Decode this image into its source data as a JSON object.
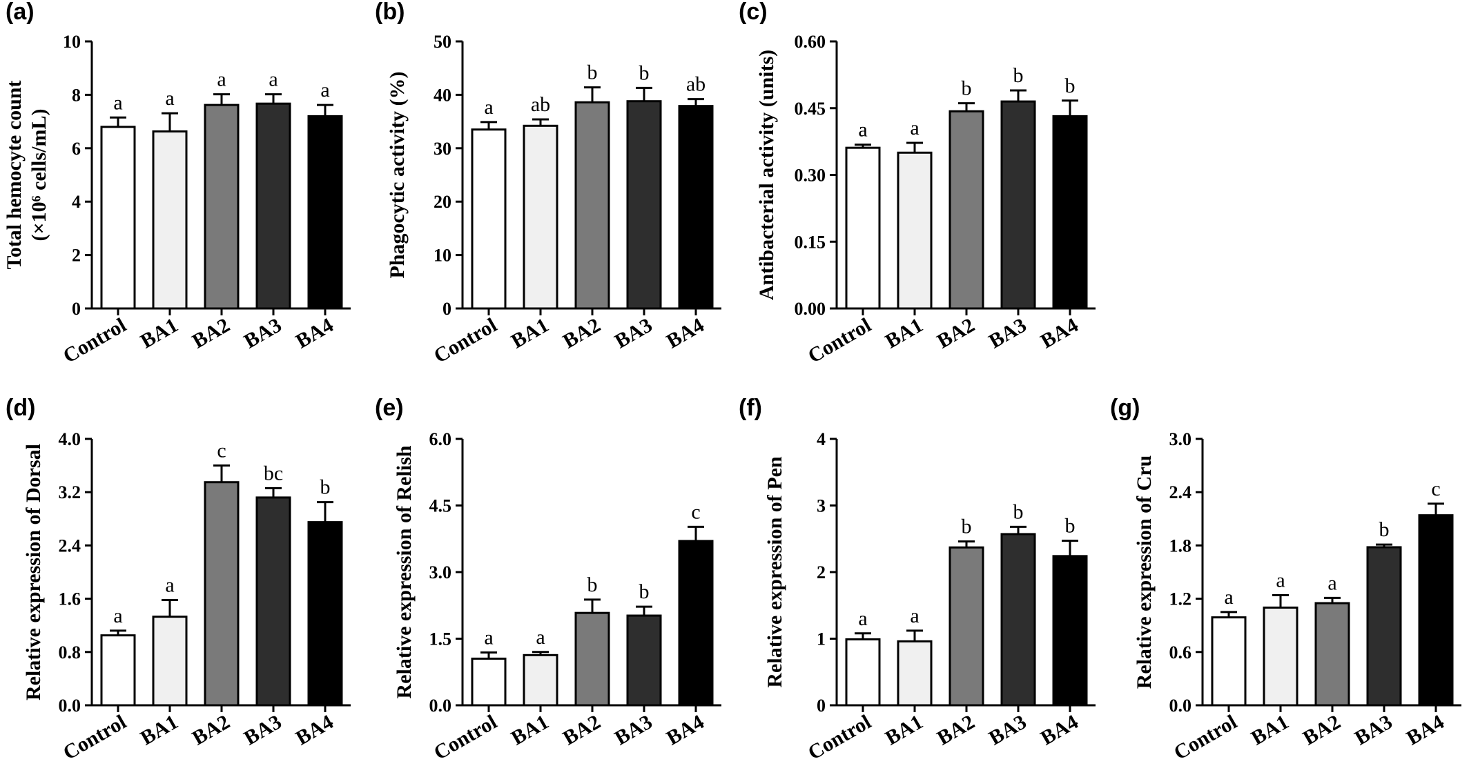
{
  "chart_data": [
    {
      "panel": "(a)",
      "type": "bar",
      "categories": [
        "Control",
        "BA1",
        "BA2",
        "BA3",
        "BA4"
      ],
      "values": [
        6.8,
        6.63,
        7.62,
        7.67,
        7.2
      ],
      "errors": [
        0.35,
        0.68,
        0.4,
        0.35,
        0.42
      ],
      "significance": [
        "a",
        "a",
        "a",
        "a",
        "a"
      ],
      "ylabel": "Total hemocyte count",
      "ylabel2": "(×10⁶ cells/mL)",
      "ylim": [
        0,
        10
      ],
      "ticks": [
        0,
        2,
        4,
        6,
        8,
        10
      ],
      "tick_labels": [
        "0",
        "2",
        "4",
        "6",
        "8",
        "10"
      ]
    },
    {
      "panel": "(b)",
      "type": "bar",
      "categories": [
        "Control",
        "BA1",
        "BA2",
        "BA3",
        "BA4"
      ],
      "values": [
        33.5,
        34.2,
        38.6,
        38.8,
        37.9
      ],
      "errors": [
        1.4,
        1.2,
        2.8,
        2.5,
        1.3
      ],
      "significance": [
        "a",
        "ab",
        "b",
        "b",
        "ab"
      ],
      "ylabel": "Phagocytic activity (%)",
      "ylim": [
        0,
        50
      ],
      "ticks": [
        0,
        10,
        20,
        30,
        40,
        50
      ],
      "tick_labels": [
        "0",
        "10",
        "20",
        "30",
        "40",
        "50"
      ]
    },
    {
      "panel": "(c)",
      "type": "bar",
      "categories": [
        "Control",
        "BA1",
        "BA2",
        "BA3",
        "BA4"
      ],
      "values": [
        0.361,
        0.35,
        0.443,
        0.465,
        0.432
      ],
      "errors": [
        0.007,
        0.022,
        0.018,
        0.025,
        0.035
      ],
      "significance": [
        "a",
        "a",
        "b",
        "b",
        "b"
      ],
      "ylabel": "Antibacterial activity (units)",
      "ylim": [
        0,
        0.6
      ],
      "ticks": [
        0,
        0.15,
        0.3,
        0.45,
        0.6
      ],
      "tick_labels": [
        "0.00",
        "0.15",
        "0.30",
        "0.45",
        "0.60"
      ]
    },
    {
      "panel": "(d)",
      "type": "bar",
      "categories": [
        "Control",
        "BA1",
        "BA2",
        "BA3",
        "BA4"
      ],
      "values": [
        1.05,
        1.33,
        3.35,
        3.12,
        2.75
      ],
      "errors": [
        0.07,
        0.25,
        0.25,
        0.14,
        0.3
      ],
      "significance": [
        "a",
        "a",
        "c",
        "bc",
        "b"
      ],
      "ylabel": "Relative expression of Dorsal",
      "ylim": [
        0,
        4.0
      ],
      "ticks": [
        0,
        0.8,
        1.6,
        2.4,
        3.2,
        4.0
      ],
      "tick_labels": [
        "0.0",
        "0.8",
        "1.6",
        "2.4",
        "3.2",
        "4.0"
      ]
    },
    {
      "panel": "(e)",
      "type": "bar",
      "categories": [
        "Control",
        "BA1",
        "BA2",
        "BA3",
        "BA4"
      ],
      "values": [
        1.05,
        1.13,
        2.08,
        2.02,
        3.7
      ],
      "errors": [
        0.14,
        0.07,
        0.3,
        0.2,
        0.32
      ],
      "significance": [
        "a",
        "a",
        "b",
        "b",
        "c"
      ],
      "ylabel": "Relative expression of Relish",
      "ylim": [
        0,
        6.0
      ],
      "ticks": [
        0,
        1.5,
        3.0,
        4.5,
        6.0
      ],
      "tick_labels": [
        "0.0",
        "1.5",
        "3.0",
        "4.5",
        "6.0"
      ]
    },
    {
      "panel": "(f)",
      "type": "bar",
      "categories": [
        "Control",
        "BA1",
        "BA2",
        "BA3",
        "BA4"
      ],
      "values": [
        0.99,
        0.96,
        2.37,
        2.57,
        2.24
      ],
      "errors": [
        0.09,
        0.16,
        0.09,
        0.11,
        0.23
      ],
      "significance": [
        "a",
        "a",
        "b",
        "b",
        "b"
      ],
      "ylabel": "Relative expression of Pen",
      "ylim": [
        0,
        4
      ],
      "ticks": [
        0,
        1,
        2,
        3,
        4
      ],
      "tick_labels": [
        "0",
        "1",
        "2",
        "3",
        "4"
      ]
    },
    {
      "panel": "(g)",
      "type": "bar",
      "categories": [
        "Control",
        "BA1",
        "BA2",
        "BA3",
        "BA4"
      ],
      "values": [
        0.99,
        1.1,
        1.15,
        1.78,
        2.14
      ],
      "errors": [
        0.06,
        0.14,
        0.06,
        0.03,
        0.13
      ],
      "significance": [
        "a",
        "a",
        "a",
        "b",
        "c"
      ],
      "ylabel": "Relative expression of Cru",
      "ylim": [
        0,
        3.0
      ],
      "ticks": [
        0,
        0.6,
        1.2,
        1.8,
        2.4,
        3.0
      ],
      "tick_labels": [
        "0.0",
        "0.6",
        "1.2",
        "1.8",
        "2.4",
        "3.0"
      ]
    }
  ],
  "bar_colors": [
    "#ffffff",
    "#f0f0f0",
    "#7a7a7a",
    "#2e2e2e",
    "#000000"
  ]
}
